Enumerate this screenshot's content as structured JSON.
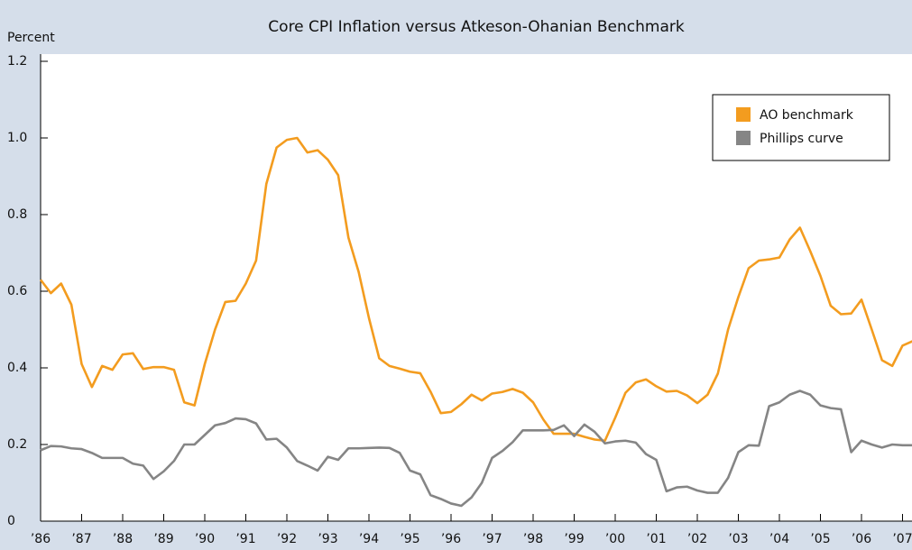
{
  "chart_data": {
    "type": "line",
    "title": "Core CPI Inflation versus Atkeson-Ohanian Benchmark",
    "y_axis_label": "Percent",
    "categories": [
      "’86",
      null,
      null,
      null,
      "’87",
      null,
      null,
      null,
      "’88",
      null,
      null,
      null,
      "’89",
      null,
      null,
      null,
      "’90",
      null,
      null,
      null,
      "’91",
      null,
      null,
      null,
      "’92",
      null,
      null,
      null,
      "’93",
      null,
      null,
      null,
      "’94",
      null,
      null,
      null,
      "’95",
      null,
      null,
      null,
      "’96",
      null,
      null,
      null,
      "’97",
      null,
      null,
      null,
      "’98",
      null,
      null,
      null,
      "’99",
      null,
      null,
      null,
      "’00",
      null,
      null,
      null,
      "’01",
      null,
      null,
      null,
      "’02",
      null,
      null,
      null,
      "’03",
      null,
      null,
      null,
      "’04",
      null,
      null,
      null,
      "’05",
      null,
      null,
      null,
      "’06",
      null,
      null,
      null,
      "’07",
      null
    ],
    "series": [
      {
        "name": "AO benchmark",
        "color": "#f39c1f",
        "values": [
          0.63,
          0.595,
          0.62,
          0.565,
          0.41,
          0.35,
          0.405,
          0.395,
          0.435,
          0.438,
          0.397,
          0.402,
          0.402,
          0.395,
          0.31,
          0.302,
          0.41,
          0.5,
          0.572,
          0.575,
          0.62,
          0.68,
          0.88,
          0.975,
          0.995,
          1.0,
          0.962,
          0.968,
          0.943,
          0.903,
          0.74,
          0.65,
          0.53,
          0.425,
          0.405,
          0.398,
          0.39,
          0.386,
          0.338,
          0.282,
          0.285,
          0.305,
          0.33,
          0.315,
          0.333,
          0.337,
          0.345,
          0.335,
          0.31,
          0.265,
          0.228,
          0.228,
          0.228,
          0.22,
          0.213,
          0.21,
          0.27,
          0.335,
          0.362,
          0.37,
          0.352,
          0.338,
          0.34,
          0.328,
          0.308,
          0.33,
          0.385,
          0.5,
          0.585,
          0.66,
          0.68,
          0.683,
          0.688,
          0.735,
          0.766,
          0.705,
          0.64,
          0.562,
          0.54,
          0.542,
          0.578,
          0.5,
          0.42,
          0.405,
          0.458,
          0.47
        ]
      },
      {
        "name": "Phillips curve",
        "color": "#858585",
        "values": [
          0.185,
          0.196,
          0.195,
          0.19,
          0.188,
          0.178,
          0.165,
          0.165,
          0.165,
          0.15,
          0.145,
          0.11,
          0.13,
          0.157,
          0.2,
          0.2,
          0.225,
          0.25,
          0.256,
          0.268,
          0.266,
          0.255,
          0.213,
          0.215,
          0.192,
          0.157,
          0.145,
          0.132,
          0.168,
          0.16,
          0.19,
          0.19,
          0.191,
          0.192,
          0.191,
          0.178,
          0.132,
          0.122,
          0.068,
          0.058,
          0.046,
          0.04,
          0.062,
          0.1,
          0.165,
          0.183,
          0.206,
          0.237,
          0.237,
          0.237,
          0.238,
          0.25,
          0.222,
          0.252,
          0.233,
          0.203,
          0.208,
          0.21,
          0.205,
          0.175,
          0.16,
          0.078,
          0.088,
          0.09,
          0.08,
          0.074,
          0.074,
          0.113,
          0.18,
          0.198,
          0.197,
          0.3,
          0.31,
          0.33,
          0.34,
          0.33,
          0.302,
          0.295,
          0.292,
          0.18,
          0.21,
          0.2,
          0.192,
          0.2,
          0.198,
          0.198
        ]
      }
    ],
    "ylim": [
      0,
      1.2
    ],
    "yticks": [
      0,
      0.2,
      0.4,
      0.6,
      0.8,
      {
        "value": 1.0,
        "label": "1.0"
      },
      1.2
    ],
    "grid": false,
    "legend": "top-right"
  }
}
